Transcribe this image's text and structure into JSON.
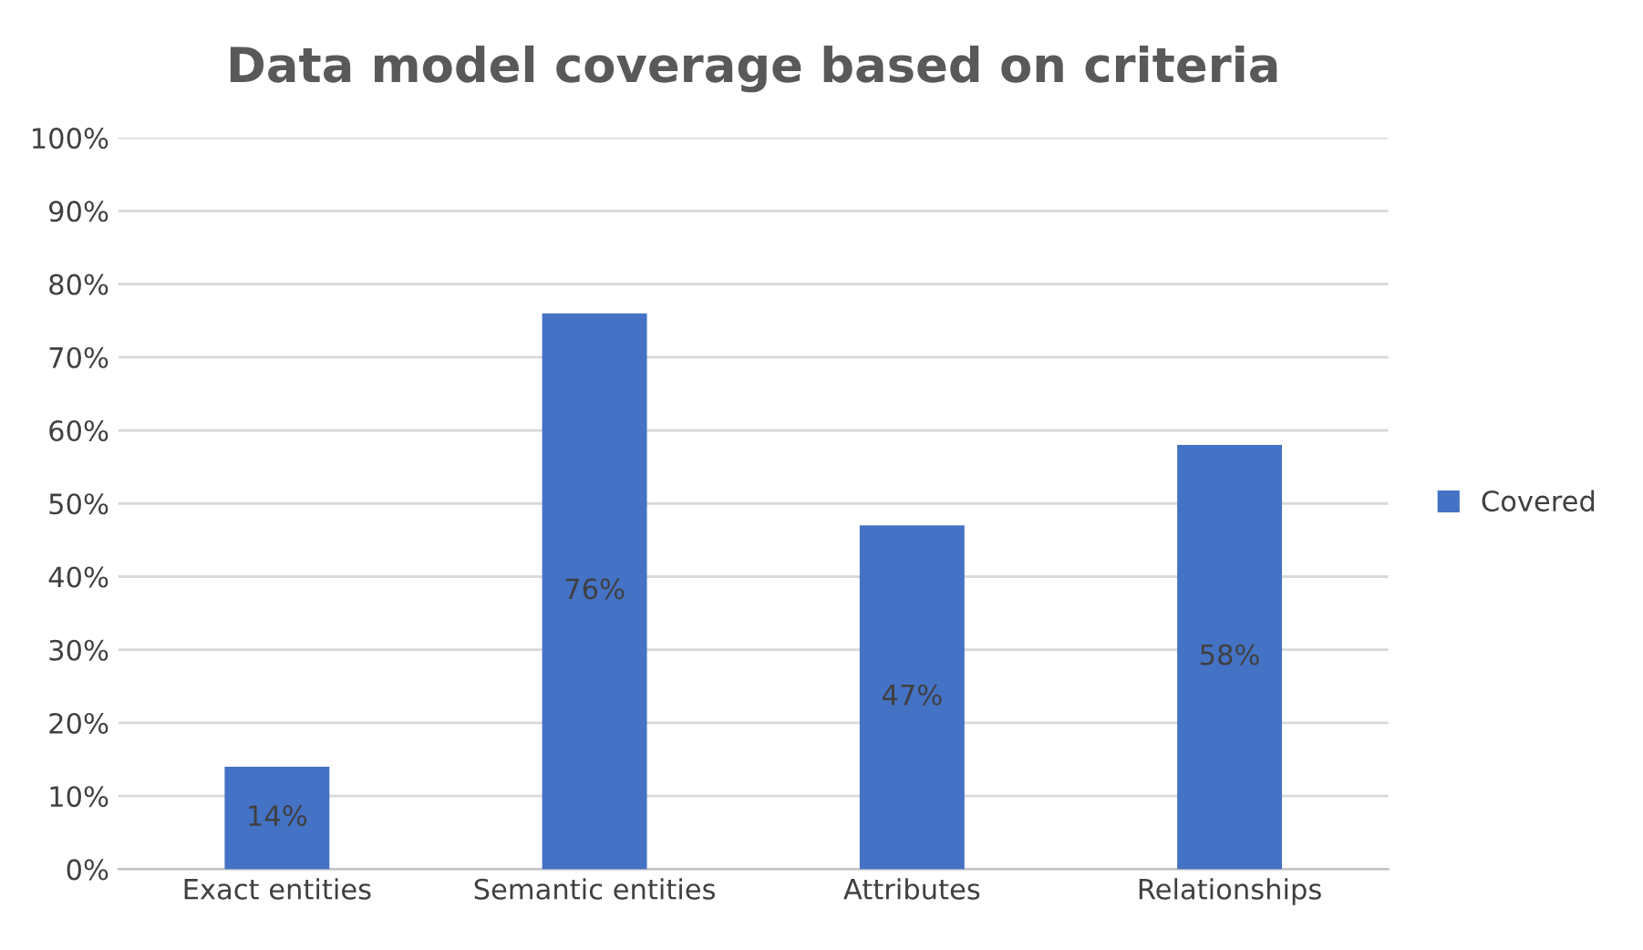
{
  "chart_data": {
    "type": "bar",
    "title": "Data model coverage based on criteria",
    "categories": [
      "Exact entities",
      "Semantic entities",
      "Attributes",
      "Relationships"
    ],
    "series": [
      {
        "name": "Covered",
        "color": "#4472c4",
        "values": [
          14,
          76,
          47,
          58
        ],
        "value_labels": [
          "14%",
          "76%",
          "47%",
          "58%"
        ]
      }
    ],
    "ylim": [
      0,
      100
    ],
    "yticks": [
      {
        "value": 0,
        "label": "0%"
      },
      {
        "value": 10,
        "label": "10%"
      },
      {
        "value": 20,
        "label": "20%"
      },
      {
        "value": 30,
        "label": "30%"
      },
      {
        "value": 40,
        "label": "40%"
      },
      {
        "value": 50,
        "label": "50%"
      },
      {
        "value": 60,
        "label": "60%"
      },
      {
        "value": 70,
        "label": "70%"
      },
      {
        "value": 80,
        "label": "80%"
      },
      {
        "value": 90,
        "label": "90%"
      },
      {
        "value": 100,
        "label": "100%"
      }
    ],
    "grid": "y",
    "legend": "right"
  }
}
